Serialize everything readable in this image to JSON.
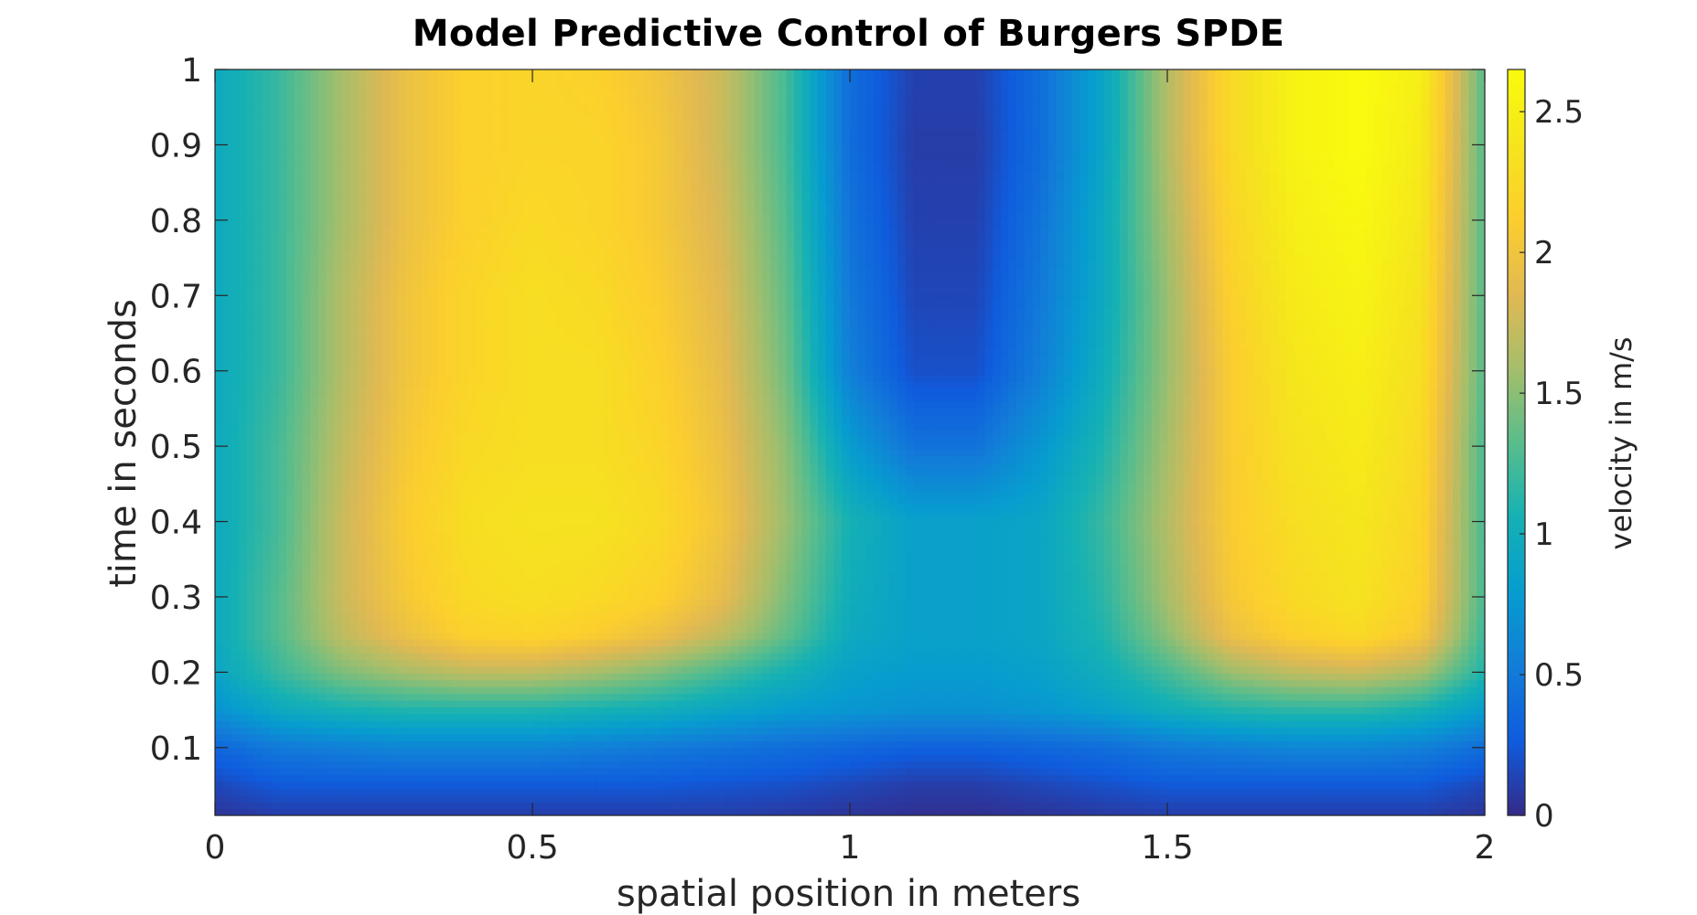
{
  "chart_data": {
    "type": "heatmap",
    "title": "Model Predictive Control of Burgers SPDE",
    "xlabel": "spatial position in meters",
    "ylabel": "time in seconds",
    "colorbar_label": "velocity in m/s",
    "colormap": "parula",
    "xlim": [
      0,
      2
    ],
    "ylim": [
      0.01,
      1
    ],
    "clim": [
      0,
      2.65
    ],
    "xticks": [
      0,
      0.5,
      1,
      1.5,
      2
    ],
    "xtick_labels": [
      "0",
      "0.5",
      "1",
      "1.5",
      "2"
    ],
    "yticks": [
      0.1,
      0.2,
      0.3,
      0.4,
      0.5,
      0.6,
      0.7,
      0.8,
      0.9,
      1
    ],
    "ytick_labels": [
      "0.1",
      "0.2",
      "0.3",
      "0.4",
      "0.5",
      "0.6",
      "0.7",
      "0.8",
      "0.9",
      "1"
    ],
    "cbar_ticks": [
      0,
      0.5,
      1,
      1.5,
      2,
      2.5
    ],
    "cbar_tick_labels": [
      "0",
      "0.5",
      "1",
      "1.5",
      "2",
      "2.5"
    ],
    "x": [
      0,
      0.1,
      0.2,
      0.3,
      0.4,
      0.5,
      0.6,
      0.7,
      0.8,
      0.9,
      1.0,
      1.1,
      1.2,
      1.3,
      1.4,
      1.5,
      1.6,
      1.7,
      1.8,
      1.9,
      2.0
    ],
    "t": [
      0.01,
      0.05,
      0.1,
      0.15,
      0.2,
      0.25,
      0.3,
      0.4,
      0.5,
      0.6,
      0.7,
      0.8,
      0.9,
      1.0
    ],
    "velocity": [
      [
        0.05,
        0.1,
        0.1,
        0.1,
        0.1,
        0.1,
        0.1,
        0.1,
        0.1,
        0.08,
        0.05,
        0.03,
        0.03,
        0.05,
        0.08,
        0.1,
        0.1,
        0.1,
        0.1,
        0.1,
        0.05
      ],
      [
        0.15,
        0.25,
        0.25,
        0.25,
        0.25,
        0.25,
        0.25,
        0.25,
        0.22,
        0.2,
        0.15,
        0.1,
        0.1,
        0.15,
        0.2,
        0.25,
        0.25,
        0.25,
        0.25,
        0.25,
        0.15
      ],
      [
        0.35,
        0.5,
        0.55,
        0.6,
        0.6,
        0.6,
        0.55,
        0.5,
        0.45,
        0.4,
        0.35,
        0.3,
        0.3,
        0.35,
        0.4,
        0.5,
        0.55,
        0.6,
        0.6,
        0.55,
        0.4
      ],
      [
        0.7,
        0.95,
        1.05,
        1.1,
        1.1,
        1.1,
        1.05,
        1.0,
        0.9,
        0.8,
        0.75,
        0.7,
        0.7,
        0.75,
        0.85,
        1.0,
        1.1,
        1.15,
        1.15,
        1.05,
        0.8
      ],
      [
        0.9,
        1.2,
        1.45,
        1.6,
        1.7,
        1.7,
        1.6,
        1.45,
        1.25,
        1.05,
        0.85,
        0.8,
        0.8,
        0.85,
        1.0,
        1.25,
        1.55,
        1.7,
        1.75,
        1.6,
        1.1
      ],
      [
        0.95,
        1.3,
        1.7,
        1.95,
        2.15,
        2.2,
        2.1,
        1.95,
        1.7,
        1.35,
        0.95,
        0.85,
        0.85,
        0.9,
        1.1,
        1.5,
        1.95,
        2.15,
        2.25,
        2.05,
        1.2
      ],
      [
        0.95,
        1.3,
        1.75,
        2.05,
        2.25,
        2.3,
        2.25,
        2.15,
        1.9,
        1.45,
        1.0,
        0.85,
        0.85,
        0.9,
        1.15,
        1.6,
        2.05,
        2.25,
        2.35,
        2.15,
        1.25
      ],
      [
        0.95,
        1.25,
        1.75,
        2.1,
        2.3,
        2.35,
        2.35,
        2.25,
        2.0,
        1.55,
        1.05,
        0.85,
        0.85,
        0.9,
        1.2,
        1.65,
        2.1,
        2.3,
        2.4,
        2.2,
        1.25
      ],
      [
        0.95,
        1.25,
        1.7,
        2.05,
        2.25,
        2.3,
        2.3,
        2.2,
        1.95,
        1.5,
        0.8,
        0.45,
        0.45,
        0.75,
        1.1,
        1.6,
        2.1,
        2.35,
        2.45,
        2.25,
        1.25
      ],
      [
        0.95,
        1.2,
        1.65,
        2.0,
        2.2,
        2.3,
        2.3,
        2.15,
        1.9,
        1.4,
        0.55,
        0.2,
        0.2,
        0.55,
        1.0,
        1.55,
        2.1,
        2.4,
        2.5,
        2.3,
        1.3
      ],
      [
        0.95,
        1.2,
        1.65,
        2.0,
        2.2,
        2.3,
        2.25,
        2.1,
        1.85,
        1.35,
        0.5,
        0.15,
        0.15,
        0.5,
        0.95,
        1.55,
        2.15,
        2.45,
        2.55,
        2.35,
        1.3
      ],
      [
        0.95,
        1.2,
        1.6,
        1.95,
        2.15,
        2.25,
        2.2,
        2.05,
        1.8,
        1.3,
        0.45,
        0.12,
        0.12,
        0.45,
        0.95,
        1.6,
        2.2,
        2.5,
        2.6,
        2.4,
        1.3
      ],
      [
        0.95,
        1.2,
        1.6,
        1.95,
        2.15,
        2.2,
        2.2,
        2.05,
        1.75,
        1.25,
        0.4,
        0.1,
        0.1,
        0.4,
        0.9,
        1.65,
        2.25,
        2.55,
        2.65,
        2.45,
        1.3
      ],
      [
        0.95,
        1.2,
        1.6,
        1.95,
        2.15,
        2.2,
        2.15,
        2.0,
        1.75,
        1.25,
        0.4,
        0.12,
        0.12,
        0.4,
        0.9,
        1.65,
        2.25,
        2.55,
        2.65,
        2.5,
        1.3
      ]
    ]
  }
}
